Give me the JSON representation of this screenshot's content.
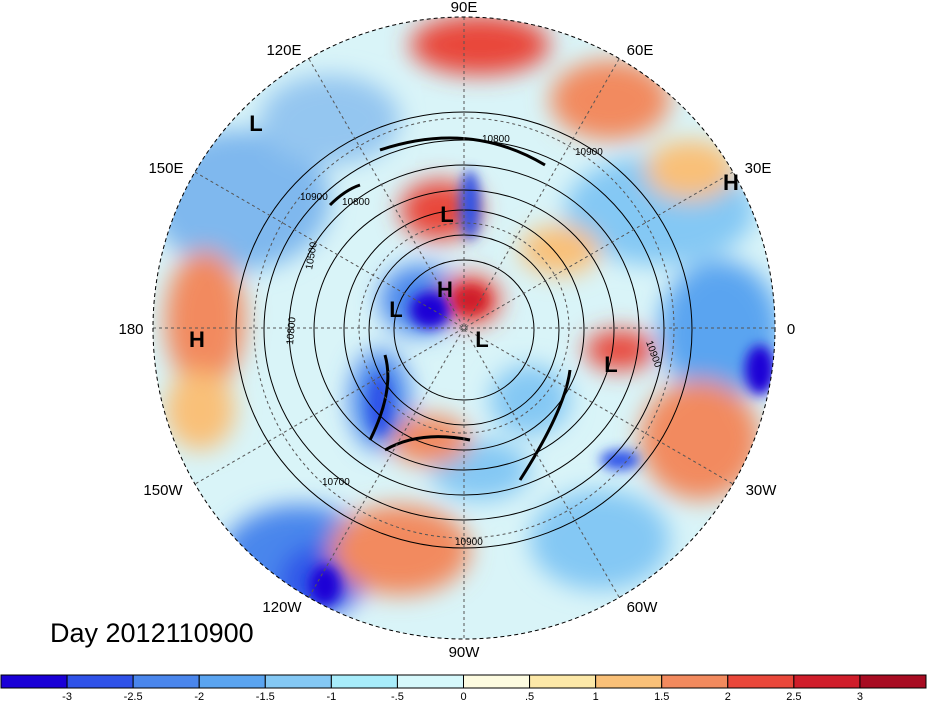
{
  "map": {
    "day_label": "Day 2012110900",
    "longitude_labels": [
      "90E",
      "60E",
      "30E",
      "0",
      "30W",
      "60W",
      "90W",
      "120W",
      "150W",
      "180",
      "150E",
      "120E"
    ],
    "pressure_centers": [
      {
        "type": "L",
        "label": "L"
      },
      {
        "type": "H",
        "label": "H"
      },
      {
        "type": "H",
        "label": "H"
      },
      {
        "type": "L",
        "label": "L"
      },
      {
        "type": "H",
        "label": "H"
      },
      {
        "type": "L",
        "label": "L"
      },
      {
        "type": "L",
        "label": "L"
      },
      {
        "type": "L",
        "label": "L"
      }
    ],
    "contour_labels": [
      "10800",
      "10900",
      "10900",
      "10800",
      "10500",
      "10800",
      "10900",
      "10700",
      "10900"
    ]
  },
  "colorbar": {
    "colors": [
      "#1a00d6",
      "#2f52e8",
      "#4a86ec",
      "#5aa4f0",
      "#84c8f4",
      "#a8ecfa",
      "#d6f8fb",
      "#fdfbe0",
      "#fce8a8",
      "#f9c078",
      "#f28a5e",
      "#e9473a",
      "#cf1d2a",
      "#a80c22"
    ],
    "tick_labels": [
      "-3",
      "-2.5",
      "-2",
      "-1.5",
      "-1",
      "-.5",
      "0",
      ".5",
      "1",
      "1.5",
      "2",
      "2.5",
      "3"
    ]
  }
}
